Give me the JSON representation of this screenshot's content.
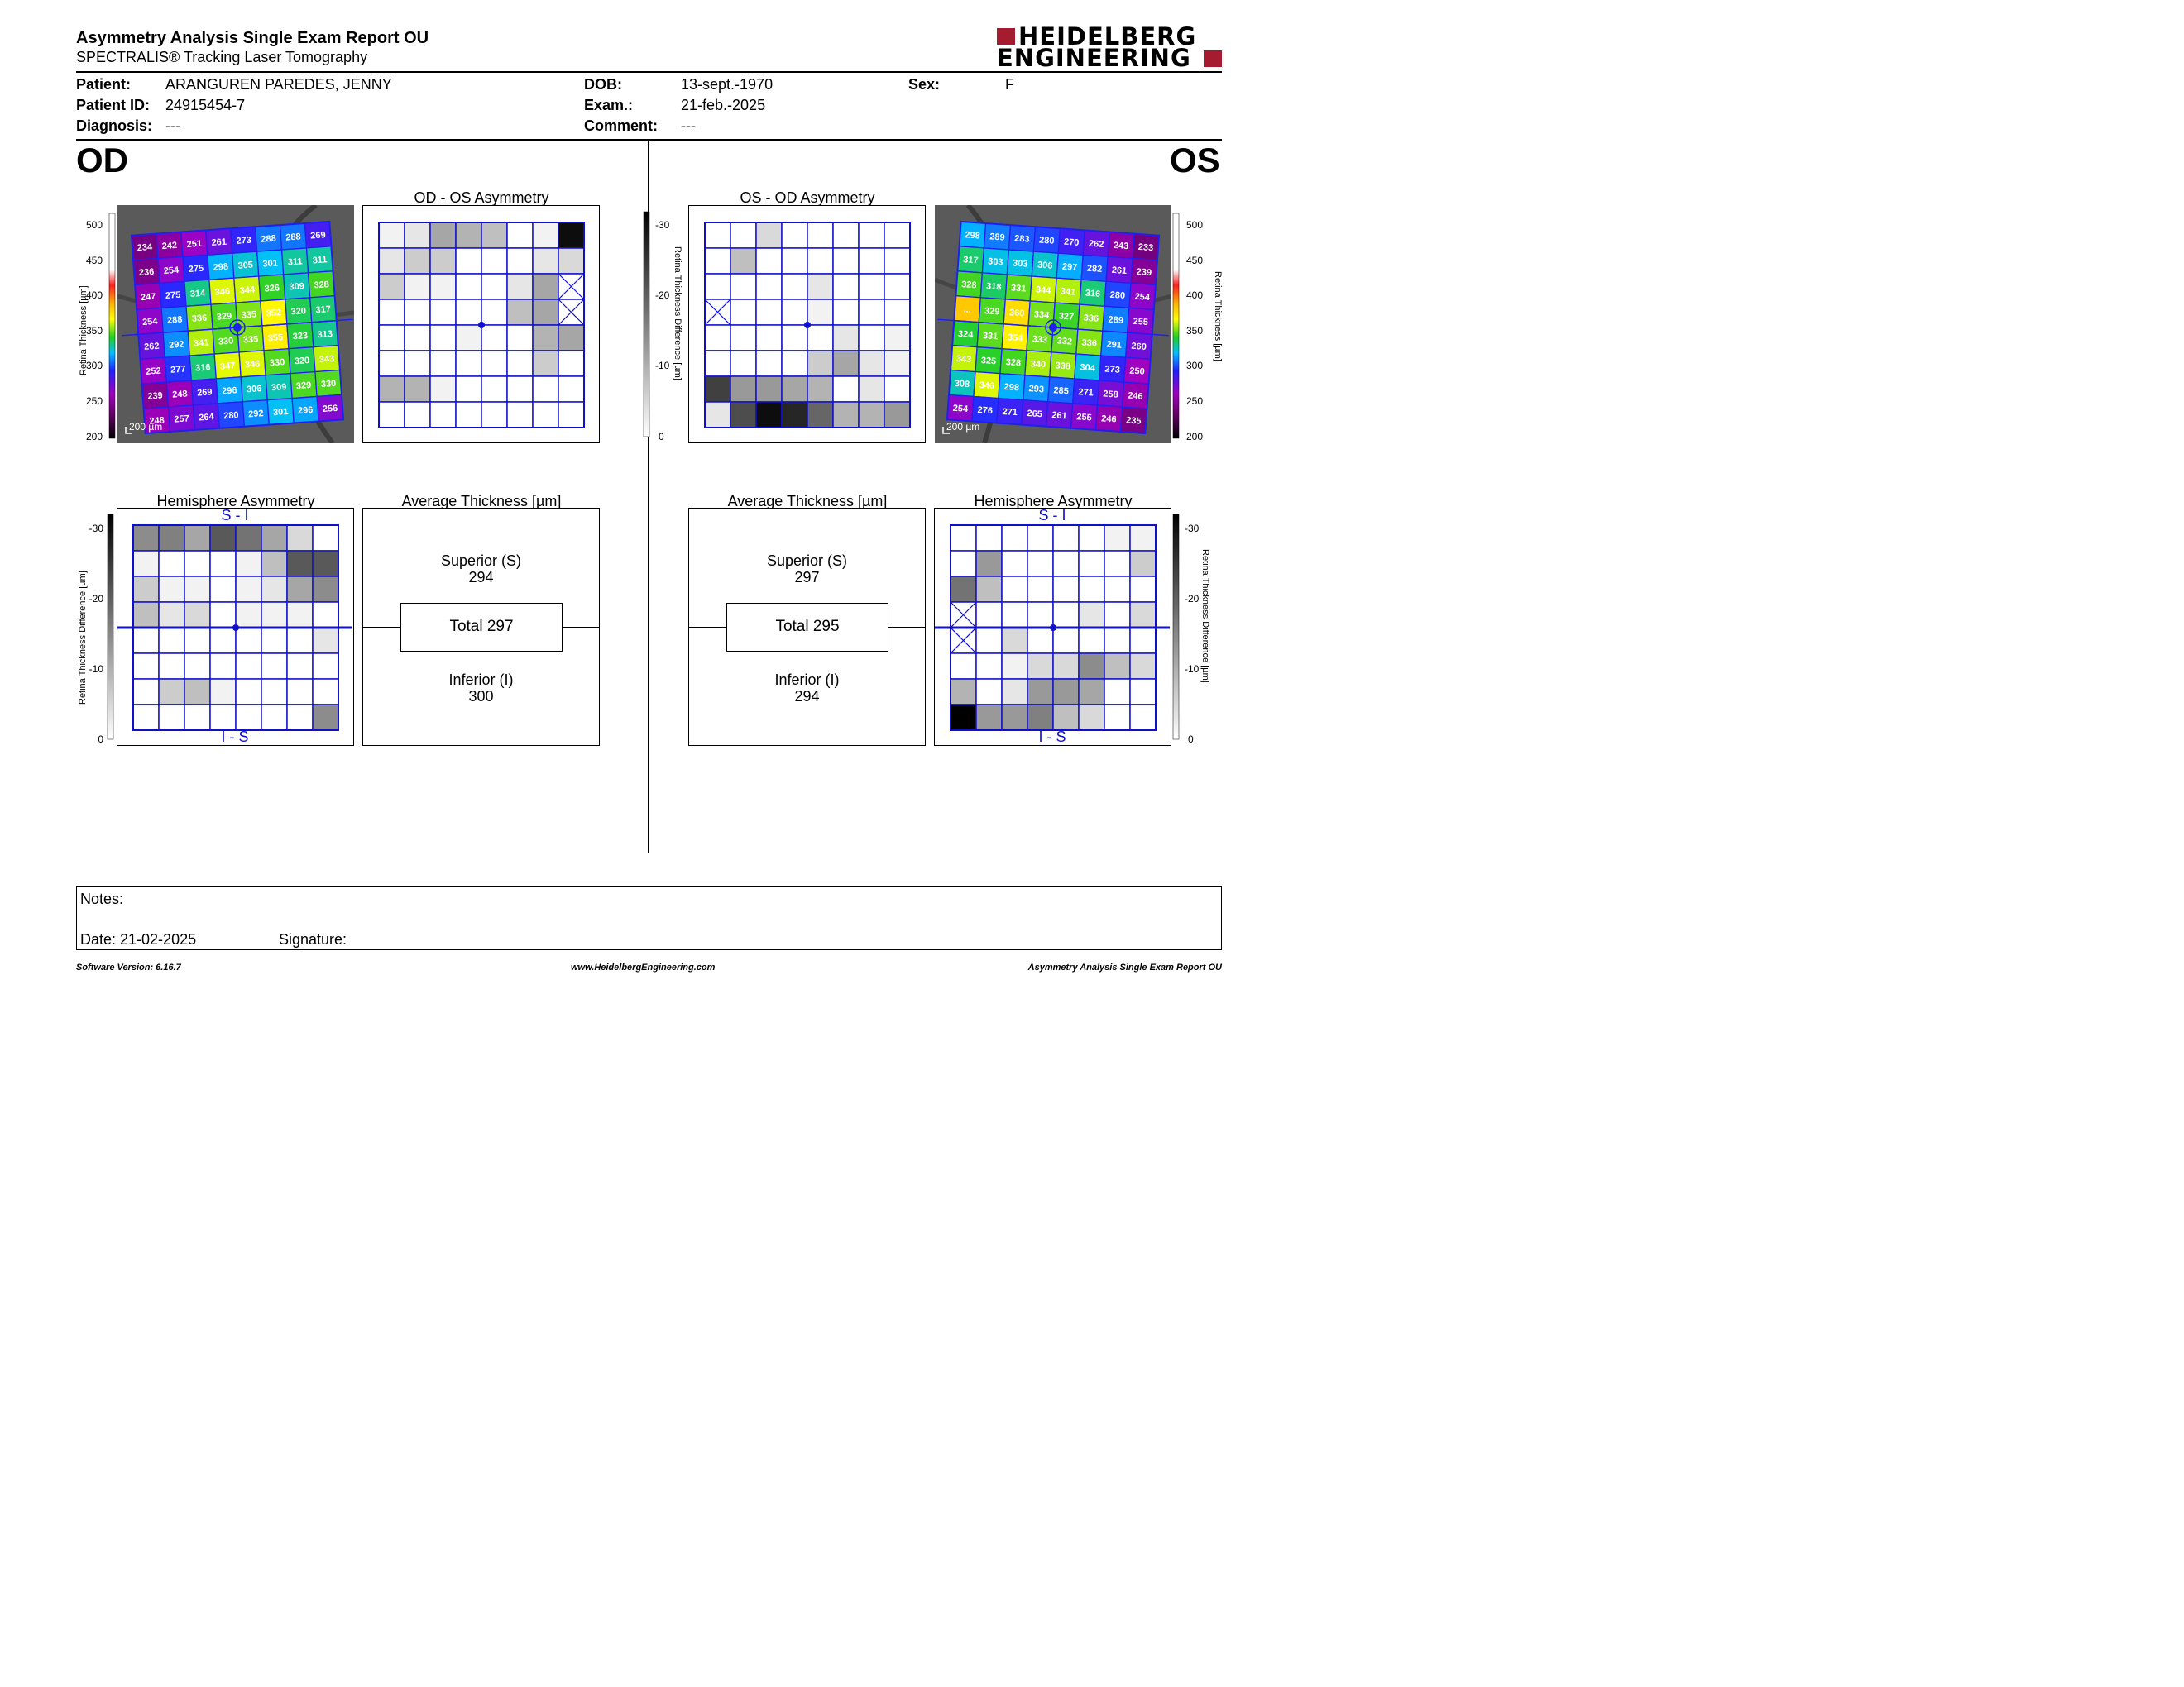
{
  "header": {
    "title": "Asymmetry Analysis Single Exam Report OU",
    "subtitle": "SPECTRALIS® Tracking Laser Tomography",
    "logo_line1": "HEIDELBERG",
    "logo_line2": "ENGINEERING"
  },
  "patient": {
    "patient_label": "Patient:",
    "patient_value": "ARANGUREN PAREDES, JENNY",
    "id_label": "Patient ID:",
    "id_value": "24915454-7",
    "diagnosis_label": "Diagnosis:",
    "diagnosis_value": "---",
    "dob_label": "DOB:",
    "dob_value": "13-sept.-1970",
    "exam_label": "Exam.:",
    "exam_value": "21-feb.-2025",
    "comment_label": "Comment:",
    "comment_value": "---",
    "sex_label": "Sex:",
    "sex_value": "F"
  },
  "od": {
    "label": "OD",
    "asymmetry_title": "OD - OS Asymmetry",
    "hemisphere_title": "Hemisphere Asymmetry",
    "hemi_top": "S - I",
    "hemi_bottom": "I - S",
    "avg_title": "Average Thickness [µm]",
    "superior_label": "Superior (S)",
    "superior_value": "294",
    "total_label": "Total 297",
    "inferior_label": "Inferior (I)",
    "inferior_value": "300",
    "scale_label": "200 µm",
    "thickness_grid": [
      [
        "234",
        "242",
        "251",
        "261",
        "273",
        "288",
        "288",
        "269"
      ],
      [
        "236",
        "254",
        "275",
        "298",
        "305",
        "301",
        "311",
        "311"
      ],
      [
        "247",
        "275",
        "314",
        "346",
        "344",
        "326",
        "309",
        "328"
      ],
      [
        "254",
        "288",
        "336",
        "329",
        "335",
        "352",
        "320",
        "317"
      ],
      [
        "262",
        "292",
        "341",
        "330",
        "335",
        "355",
        "323",
        "313"
      ],
      [
        "252",
        "277",
        "316",
        "347",
        "346",
        "330",
        "320",
        "343"
      ],
      [
        "239",
        "248",
        "269",
        "296",
        "306",
        "309",
        "329",
        "330"
      ],
      [
        "248",
        "257",
        "264",
        "280",
        "292",
        "301",
        "296",
        "256"
      ]
    ],
    "asym_grid": [
      [
        0.05,
        0.1,
        0.35,
        0.3,
        0.25,
        0,
        0.05,
        0.95
      ],
      [
        0.1,
        0.2,
        0.2,
        0,
        0,
        0,
        0.1,
        0.15
      ],
      [
        0.2,
        0.05,
        0.05,
        0,
        0,
        0.1,
        0.35,
        -1
      ],
      [
        0,
        0,
        0,
        0,
        0,
        0.25,
        0.35,
        -2
      ],
      [
        0,
        0,
        0,
        0.05,
        0,
        0,
        0.3,
        0.35
      ],
      [
        0,
        0,
        0,
        0,
        0,
        0,
        0.2,
        0
      ],
      [
        0.3,
        0.3,
        0.05,
        0,
        0,
        0,
        0,
        0
      ],
      [
        0,
        0,
        0,
        0,
        0,
        0,
        0,
        0
      ]
    ],
    "hemi_grid": [
      [
        0.45,
        0.5,
        0.35,
        0.65,
        0.55,
        0.35,
        0.15,
        0
      ],
      [
        0.05,
        0,
        0,
        0,
        0.05,
        0.25,
        0.65,
        0.65
      ],
      [
        0.2,
        0.05,
        0.05,
        0,
        0.05,
        0.1,
        0.35,
        0.45
      ],
      [
        0.25,
        0.1,
        0.15,
        0,
        0.05,
        0.05,
        0.05,
        0
      ],
      [
        0,
        0,
        0,
        0,
        0,
        0,
        0,
        0.1
      ],
      [
        0,
        0,
        0,
        0,
        0,
        0,
        0,
        0
      ],
      [
        0,
        0.2,
        0.25,
        0.05,
        0,
        0,
        0,
        0
      ],
      [
        0,
        0,
        0,
        0,
        0,
        0,
        0,
        0.45
      ]
    ]
  },
  "os": {
    "label": "OS",
    "asymmetry_title": "OS - OD Asymmetry",
    "hemisphere_title": "Hemisphere Asymmetry",
    "hemi_top": "S - I",
    "hemi_bottom": "I - S",
    "avg_title": "Average Thickness [µm]",
    "superior_label": "Superior (S)",
    "superior_value": "297",
    "total_label": "Total 295",
    "inferior_label": "Inferior (I)",
    "inferior_value": "294",
    "scale_label": "200 µm",
    "thickness_grid": [
      [
        "298",
        "289",
        "283",
        "280",
        "270",
        "262",
        "243",
        "233"
      ],
      [
        "317",
        "303",
        "303",
        "306",
        "297",
        "282",
        "261",
        "239"
      ],
      [
        "328",
        "318",
        "331",
        "344",
        "341",
        "316",
        "280",
        "254"
      ],
      [
        "...",
        "329",
        "360",
        "334",
        "327",
        "336",
        "289",
        "255"
      ],
      [
        "324",
        "331",
        "354",
        "333",
        "332",
        "336",
        "291",
        "260"
      ],
      [
        "343",
        "325",
        "328",
        "340",
        "338",
        "304",
        "273",
        "250"
      ],
      [
        "308",
        "346",
        "298",
        "293",
        "285",
        "271",
        "258",
        "246"
      ],
      [
        "254",
        "276",
        "271",
        "265",
        "261",
        "255",
        "246",
        "235"
      ]
    ],
    "asym_grid": [
      [
        0,
        0,
        0.15,
        0,
        0,
        0,
        0,
        0
      ],
      [
        0,
        0.25,
        0,
        0,
        0,
        0,
        0,
        0
      ],
      [
        0,
        0,
        0,
        0,
        0.1,
        0,
        0,
        0
      ],
      [
        -1,
        0,
        0,
        0,
        0.05,
        0,
        0,
        0
      ],
      [
        0,
        0,
        0,
        0,
        0,
        0.1,
        0,
        0.05
      ],
      [
        0,
        0,
        0,
        0,
        0.2,
        0.35,
        0.1,
        0.05
      ],
      [
        0.75,
        0.4,
        0.4,
        0.35,
        0.3,
        0,
        0.1,
        0
      ],
      [
        0.1,
        0.7,
        0.95,
        0.85,
        0.6,
        0.3,
        0.3,
        0.4
      ]
    ],
    "hemi_grid": [
      [
        0,
        0,
        0,
        0,
        0,
        0,
        0.05,
        0.05
      ],
      [
        0,
        0.4,
        0,
        0,
        0,
        0,
        0,
        0.2
      ],
      [
        0.55,
        0.25,
        0,
        0,
        0,
        0,
        0,
        0
      ],
      [
        -1,
        0,
        0,
        0,
        0,
        0.1,
        0,
        0.15
      ],
      [
        -1,
        0,
        0.15,
        0,
        0,
        0,
        0,
        0
      ],
      [
        0,
        0,
        0.05,
        0.15,
        0.15,
        0.45,
        0.25,
        0.15
      ],
      [
        0.3,
        0,
        0.1,
        0.4,
        0.4,
        0.35,
        0,
        0
      ],
      [
        1,
        0.4,
        0.4,
        0.5,
        0.25,
        0.15,
        0,
        0
      ]
    ]
  },
  "color_scales": {
    "thickness_label": "Retina  Thickness [µm]",
    "thickness_ticks": [
      "500",
      "450",
      "400",
      "350",
      "300",
      "250",
      "200"
    ],
    "difference_label": "Retina Thickness Difference [µm]",
    "difference_ticks": [
      "-30",
      "-20",
      "-10",
      "0"
    ]
  },
  "notes": {
    "notes_label": "Notes:",
    "date_label": "Date: 21-02-2025",
    "signature_label": "Signature:"
  },
  "footer": {
    "version": "Software Version: 6.16.7",
    "url": "www.HeidelbergEngineering.com",
    "report_name": "Asymmetry Analysis Single Exam Report OU"
  },
  "colors": {
    "grid_blue": "#1010cc",
    "logo_red": "#a51c30"
  }
}
